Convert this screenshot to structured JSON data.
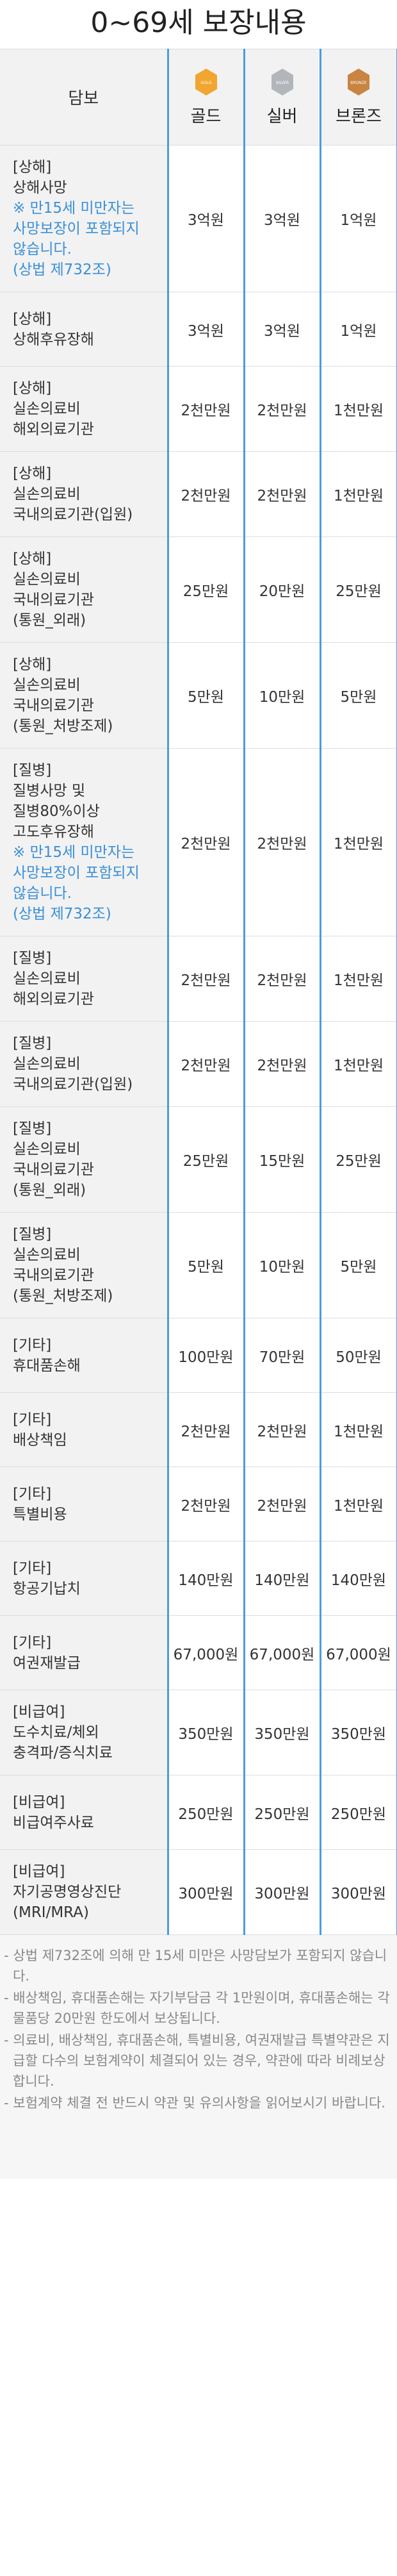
{
  "title": "0~69세 보장내용",
  "table": {
    "coverage_header": "담보",
    "plans": [
      {
        "name": "골드",
        "badge": "GOLD",
        "color": "#f0a631",
        "badge_icon": "gold-medal-icon"
      },
      {
        "name": "실버",
        "badge": "SILVER",
        "color": "#b2b6bb",
        "badge_icon": "silver-medal-icon"
      },
      {
        "name": "브론즈",
        "badge": "BRONZE",
        "color": "#c98442",
        "badge_icon": "bronze-medal-icon"
      }
    ],
    "rows": [
      {
        "category": "[상해]",
        "name": "상해사망",
        "note": "※ 만15세 미만자는\n사망보장이 포함되지\n않습니다.\n(상법 제732조)",
        "values": [
          "3억원",
          "3억원",
          "1억원"
        ]
      },
      {
        "category": "[상해]",
        "name": "상해후유장해",
        "note": "",
        "values": [
          "3억원",
          "3억원",
          "1억원"
        ]
      },
      {
        "category": "[상해]",
        "name": "실손의료비\n해외의료기관",
        "note": "",
        "values": [
          "2천만원",
          "2천만원",
          "1천만원"
        ]
      },
      {
        "category": "[상해]",
        "name": "실손의료비\n국내의료기관(입원)",
        "note": "",
        "values": [
          "2천만원",
          "2천만원",
          "1천만원"
        ]
      },
      {
        "category": "[상해]",
        "name": "실손의료비\n국내의료기관\n(통원_외래)",
        "note": "",
        "values": [
          "25만원",
          "20만원",
          "25만원"
        ]
      },
      {
        "category": "[상해]",
        "name": "실손의료비\n국내의료기관\n(통원_처방조제)",
        "note": "",
        "values": [
          "5만원",
          "10만원",
          "5만원"
        ]
      },
      {
        "category": "[질병]",
        "name": "질병사망 및\n질병80%이상\n고도후유장해",
        "note": "※ 만15세 미만자는\n사망보장이 포함되지\n않습니다.\n(상법 제732조)",
        "values": [
          "2천만원",
          "2천만원",
          "1천만원"
        ]
      },
      {
        "category": "[질병]",
        "name": "실손의료비\n해외의료기관",
        "note": "",
        "values": [
          "2천만원",
          "2천만원",
          "1천만원"
        ]
      },
      {
        "category": "[질병]",
        "name": "실손의료비\n국내의료기관(입원)",
        "note": "",
        "values": [
          "2천만원",
          "2천만원",
          "1천만원"
        ]
      },
      {
        "category": "[질병]",
        "name": "실손의료비\n국내의료기관\n(통원_외래)",
        "note": "",
        "values": [
          "25만원",
          "15만원",
          "25만원"
        ]
      },
      {
        "category": "[질병]",
        "name": "실손의료비\n국내의료기관\n(통원_처방조제)",
        "note": "",
        "values": [
          "5만원",
          "10만원",
          "5만원"
        ]
      },
      {
        "category": "[기타]",
        "name": "휴대품손해",
        "note": "",
        "values": [
          "100만원",
          "70만원",
          "50만원"
        ]
      },
      {
        "category": "[기타]",
        "name": "배상책임",
        "note": "",
        "values": [
          "2천만원",
          "2천만원",
          "1천만원"
        ]
      },
      {
        "category": "[기타]",
        "name": "특별비용",
        "note": "",
        "values": [
          "2천만원",
          "2천만원",
          "1천만원"
        ]
      },
      {
        "category": "[기타]",
        "name": "항공기납치",
        "note": "",
        "values": [
          "140만원",
          "140만원",
          "140만원"
        ]
      },
      {
        "category": "[기타]",
        "name": "여권재발급",
        "note": "",
        "values": [
          "67,000원",
          "67,000원",
          "67,000원"
        ]
      },
      {
        "category": "[비급여]",
        "name": "도수치료/체외\n충격파/증식치료",
        "note": "",
        "values": [
          "350만원",
          "350만원",
          "350만원"
        ]
      },
      {
        "category": "[비급여]",
        "name": "비급여주사료",
        "note": "",
        "values": [
          "250만원",
          "250만원",
          "250만원"
        ]
      },
      {
        "category": "[비급여]",
        "name": "자기공명영상진단\n(MRI/MRA)",
        "note": "",
        "values": [
          "300만원",
          "300만원",
          "300만원"
        ]
      }
    ]
  },
  "footer_notes": [
    "- 상법 제732조에 의해 만 15세 미만은 사망담보가 포함되지 않습니다.",
    "- 배상책임, 휴대품손해는 자기부담금 각 1만원이며, 휴대품손해는 각 물품당 20만원 한도에서 보상됩니다.",
    "- 의료비, 배상책임, 휴대품손해, 특별비용, 여권재발급 특별약관은 지급할 다수의 보험계약이 체결되어 있는 경우, 약관에 따라 비례보상합니다.",
    "- 보험계약 체결 전 반드시 약관 및 유의사항을 읽어보시기 바랍니다."
  ]
}
